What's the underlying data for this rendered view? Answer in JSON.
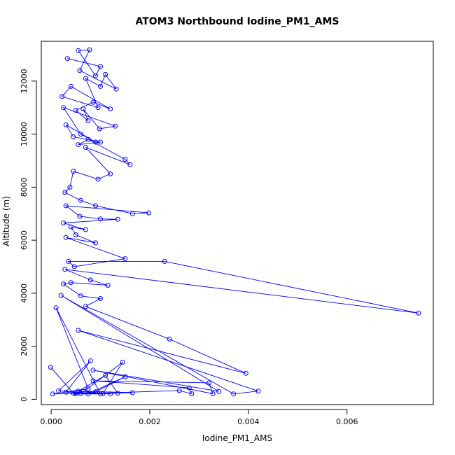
{
  "chart_data": {
    "type": "line",
    "title": "ATOM3 Northbound Iodine_PM1_AMS",
    "xlabel": "Iodine_PM1_AMS",
    "ylabel": "Altitude (m)",
    "xlim": [
      -0.0002,
      0.00775
    ],
    "ylim": [
      -200,
      13500
    ],
    "xticks": [
      0,
      0.002,
      0.004,
      0.006
    ],
    "xtick_labels": [
      "0.000",
      "0.002",
      "0.004",
      "0.006"
    ],
    "yticks": [
      0,
      2000,
      4000,
      6000,
      8000,
      10000,
      12000
    ],
    "ytick_labels": [
      "0",
      "2000",
      "4000",
      "6000",
      "8000",
      "10000",
      "12000"
    ],
    "grid": false,
    "series_color": "#0000ff",
    "series": [
      {
        "x": [
          0.00033,
          0.001,
          0.0009,
          0.00055,
          0.00078,
          0.00058,
          0.00132,
          0.0011,
          0.001,
          0.0007,
          0.00095,
          0.00022,
          0.0004,
          0.0012,
          0.00085,
          0.0005,
          0.00075,
          0.00065,
          0.00098,
          0.0013,
          0.00025,
          0.0006,
          0.0009,
          0.0003,
          0.00045,
          0.001,
          0.00055,
          0.00075,
          0.0015,
          0.0016,
          0.0007,
          0.0012,
          0.00095,
          0.00045,
          0.00038,
          0.00028,
          0.0006,
          0.0009,
          0.00165,
          0.00198,
          0.0003,
          0.00058,
          0.001,
          0.00135,
          0.00025,
          0.0007,
          0.0004,
          0.0005,
          0.0009,
          0.0003,
          0.0015,
          0.00047,
          0.00035,
          0.0023,
          0.00745,
          0.00028,
          0.0008,
          0.00115,
          0.0004,
          0.00025,
          0.0006,
          0.001,
          0.0007,
          0.0024,
          0.00395,
          0.00055,
          0.0042,
          0.0037,
          0.0002,
          0.0034,
          0.00085,
          0.00328,
          0.0032,
          0.00085,
          0.0028,
          0.00285,
          0.0026,
          0.0005,
          0.001,
          0.0001,
          0.00075,
          3e-05,
          0.00165,
          0.00055,
          0.0011,
          0.00135,
          0.00075,
          0.0015,
          0.0009,
          0.0006,
          0.00145,
          0.00105,
          0.0005,
          0.00015,
          0.0008,
          0.0003,
          0.0012,
          0.00065,
          0.00045,
          -1e-05
        ],
        "y": [
          12850,
          12550,
          12200,
          13150,
          13180,
          12400,
          11700,
          12250,
          11800,
          12100,
          11000,
          11420,
          11800,
          10950,
          11200,
          10900,
          10500,
          10950,
          10200,
          10300,
          11000,
          10000,
          9700,
          10350,
          9900,
          9700,
          9600,
          9800,
          9050,
          8850,
          9500,
          8500,
          8300,
          8600,
          8000,
          7800,
          7500,
          7300,
          7000,
          7030,
          7300,
          6900,
          6800,
          6790,
          6650,
          6400,
          6500,
          6200,
          5900,
          6100,
          5300,
          5000,
          5200,
          5200,
          3250,
          4900,
          4500,
          4300,
          4400,
          4350,
          3900,
          3800,
          3500,
          2270,
          980,
          2600,
          310,
          200,
          3920,
          300,
          1100,
          210,
          620,
          700,
          430,
          210,
          330,
          200,
          200,
          3450,
          400,
          200,
          250,
          310,
          900,
          230,
          200,
          850,
          280,
          210,
          1400,
          220,
          260,
          320,
          1450,
          270,
          200,
          300,
          230,
          1210
        ]
      }
    ]
  }
}
